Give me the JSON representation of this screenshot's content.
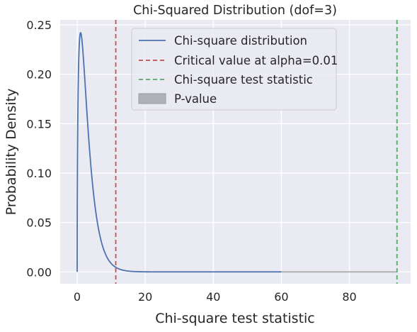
{
  "chart_data": {
    "type": "line",
    "title": "Chi-Squared Distribution (dof=3)",
    "xlabel": "Chi-square test statistic",
    "ylabel": "Probability Density",
    "xlim": [
      -5,
      98
    ],
    "ylim": [
      -0.012,
      0.255
    ],
    "grid": true,
    "legend_position": "top-center",
    "dof": 3,
    "x_ticks": [
      {
        "value": 0,
        "label": "0"
      },
      {
        "value": 20,
        "label": "20"
      },
      {
        "value": 40,
        "label": "40"
      },
      {
        "value": 60,
        "label": "60"
      },
      {
        "value": 80,
        "label": "80"
      }
    ],
    "y_ticks": [
      {
        "value": 0.0,
        "label": "0.00"
      },
      {
        "value": 0.05,
        "label": "0.05"
      },
      {
        "value": 0.1,
        "label": "0.10"
      },
      {
        "value": 0.15,
        "label": "0.15"
      },
      {
        "value": 0.2,
        "label": "0.20"
      },
      {
        "value": 0.25,
        "label": "0.25"
      }
    ],
    "series": [
      {
        "name": "Chi-square distribution",
        "kind": "line",
        "x_range": [
          0,
          60
        ],
        "color": "#4c72b0"
      },
      {
        "name": "Critical value at alpha=0.01",
        "kind": "vline",
        "x": 11.34,
        "color": "#c44e52"
      },
      {
        "name": "Chi-square test statistic",
        "kind": "vline",
        "x": 94,
        "color": "#55a868"
      },
      {
        "name": "P-value",
        "kind": "area",
        "x_range": [
          60,
          94
        ],
        "color": "#aaaaaa"
      }
    ]
  }
}
